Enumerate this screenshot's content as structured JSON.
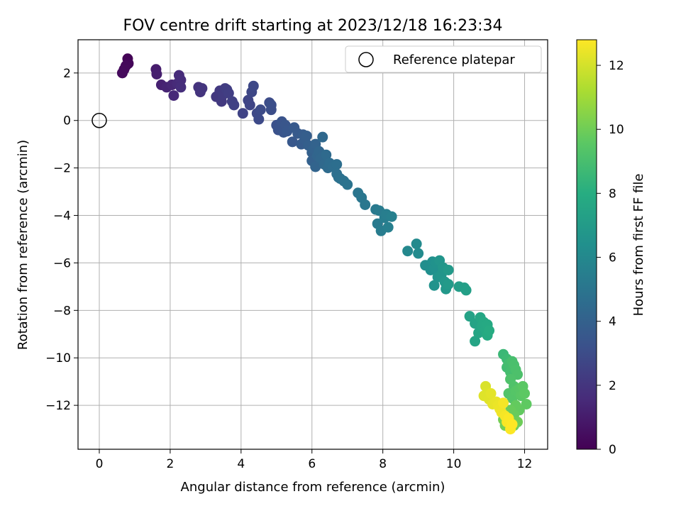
{
  "chart_data": {
    "type": "scatter",
    "title": "FOV centre drift starting at 2023/12/18 16:23:34",
    "xlabel": "Angular distance from reference (arcmin)",
    "ylabel": "Rotation from reference (arcmin)",
    "colorbar_label": "Hours from first FF file",
    "xlim": [
      -0.6,
      12.65
    ],
    "ylim": [
      -13.85,
      3.4
    ],
    "x_ticks": [
      0,
      2,
      4,
      6,
      8,
      10,
      12
    ],
    "y_ticks": [
      -12,
      -10,
      -8,
      -6,
      -4,
      -2,
      0,
      2
    ],
    "colorbar_range": [
      0,
      12.8
    ],
    "colorbar_ticks": [
      0,
      2,
      4,
      6,
      8,
      10,
      12
    ],
    "colormap": "viridis",
    "grid": true,
    "legend_position": "top-right",
    "legend": [
      {
        "label": "Reference platepar",
        "marker": "open-circle",
        "x": 0,
        "y": 0
      }
    ],
    "series": [
      {
        "points": [
          [
            0.8,
            2.6,
            0.1
          ],
          [
            0.82,
            2.4,
            0.2
          ],
          [
            0.75,
            2.3,
            0.25
          ],
          [
            0.7,
            2.15,
            0.3
          ],
          [
            0.65,
            2.0,
            0.35
          ],
          [
            1.6,
            2.15,
            1.0
          ],
          [
            1.62,
            1.95,
            1.1
          ],
          [
            1.75,
            1.5,
            1.2
          ],
          [
            1.9,
            1.4,
            1.3
          ],
          [
            2.05,
            1.5,
            1.4
          ],
          [
            2.1,
            1.05,
            1.5
          ],
          [
            2.2,
            1.55,
            1.55
          ],
          [
            2.25,
            1.9,
            1.6
          ],
          [
            2.3,
            1.7,
            1.65
          ],
          [
            2.3,
            1.4,
            1.7
          ],
          [
            2.8,
            1.4,
            1.9
          ],
          [
            2.85,
            1.2,
            1.95
          ],
          [
            2.9,
            1.35,
            2.0
          ],
          [
            3.3,
            1.0,
            2.1
          ],
          [
            3.4,
            1.25,
            2.15
          ],
          [
            3.45,
            0.8,
            2.2
          ],
          [
            3.5,
            1.1,
            2.25
          ],
          [
            3.55,
            1.35,
            2.3
          ],
          [
            3.6,
            1.3,
            2.35
          ],
          [
            3.65,
            1.15,
            2.4
          ],
          [
            3.75,
            0.8,
            2.45
          ],
          [
            3.8,
            0.65,
            2.5
          ],
          [
            4.05,
            0.3,
            2.6
          ],
          [
            4.2,
            0.85,
            2.65
          ],
          [
            4.25,
            0.65,
            2.7
          ],
          [
            4.3,
            1.2,
            2.75
          ],
          [
            4.35,
            1.45,
            2.8
          ],
          [
            4.45,
            0.3,
            2.85
          ],
          [
            4.5,
            0.05,
            2.9
          ],
          [
            4.55,
            0.45,
            2.95
          ],
          [
            4.8,
            0.75,
            3.0
          ],
          [
            4.85,
            0.45,
            3.05
          ],
          [
            4.85,
            0.65,
            3.1
          ],
          [
            5.0,
            -0.2,
            3.2
          ],
          [
            5.05,
            -0.4,
            3.25
          ],
          [
            5.1,
            -0.3,
            3.3
          ],
          [
            5.15,
            -0.05,
            3.35
          ],
          [
            5.2,
            -0.5,
            3.4
          ],
          [
            5.25,
            -0.2,
            3.45
          ],
          [
            5.3,
            -0.45,
            3.5
          ],
          [
            5.45,
            -0.9,
            3.55
          ],
          [
            5.5,
            -0.3,
            3.6
          ],
          [
            5.6,
            -0.55,
            3.65
          ],
          [
            5.7,
            -1.0,
            3.7
          ],
          [
            5.75,
            -0.6,
            3.75
          ],
          [
            5.8,
            -0.8,
            3.8
          ],
          [
            5.85,
            -0.65,
            3.85
          ],
          [
            5.9,
            -1.05,
            3.9
          ],
          [
            6.0,
            -1.35,
            3.95
          ],
          [
            6.0,
            -1.7,
            4.0
          ],
          [
            6.05,
            -1.2,
            4.05
          ],
          [
            6.1,
            -1.0,
            4.1
          ],
          [
            6.1,
            -1.95,
            4.15
          ],
          [
            6.15,
            -1.5,
            4.2
          ],
          [
            6.2,
            -1.3,
            4.25
          ],
          [
            6.25,
            -1.6,
            4.3
          ],
          [
            6.3,
            -0.7,
            4.35
          ],
          [
            6.35,
            -1.85,
            4.4
          ],
          [
            6.4,
            -1.45,
            4.45
          ],
          [
            6.45,
            -2.0,
            4.5
          ],
          [
            6.5,
            -1.8,
            4.55
          ],
          [
            6.6,
            -1.95,
            4.6
          ],
          [
            6.7,
            -1.85,
            4.65
          ],
          [
            6.7,
            -2.25,
            4.7
          ],
          [
            6.75,
            -2.4,
            4.75
          ],
          [
            6.8,
            -2.45,
            4.8
          ],
          [
            6.9,
            -2.55,
            4.85
          ],
          [
            7.0,
            -2.7,
            4.9
          ],
          [
            7.3,
            -3.05,
            5.0
          ],
          [
            7.4,
            -3.25,
            5.05
          ],
          [
            7.5,
            -3.55,
            5.1
          ],
          [
            7.8,
            -3.75,
            5.2
          ],
          [
            7.85,
            -4.35,
            5.25
          ],
          [
            7.9,
            -3.8,
            5.3
          ],
          [
            7.95,
            -4.65,
            5.35
          ],
          [
            8.05,
            -4.1,
            5.4
          ],
          [
            8.1,
            -3.95,
            5.45
          ],
          [
            8.15,
            -4.5,
            5.5
          ],
          [
            8.25,
            -4.05,
            5.55
          ],
          [
            8.7,
            -5.5,
            6.0
          ],
          [
            8.95,
            -5.2,
            6.1
          ],
          [
            9.0,
            -5.6,
            6.15
          ],
          [
            9.2,
            -6.1,
            6.3
          ],
          [
            9.35,
            -6.3,
            6.35
          ],
          [
            9.4,
            -5.95,
            6.4
          ],
          [
            9.45,
            -6.2,
            6.45
          ],
          [
            9.5,
            -6.0,
            6.5
          ],
          [
            9.45,
            -6.95,
            6.55
          ],
          [
            9.55,
            -6.6,
            6.6
          ],
          [
            9.6,
            -5.9,
            6.65
          ],
          [
            9.65,
            -6.5,
            6.7
          ],
          [
            9.7,
            -6.2,
            6.75
          ],
          [
            9.75,
            -6.8,
            6.8
          ],
          [
            9.78,
            -7.1,
            6.85
          ],
          [
            9.85,
            -6.3,
            6.9
          ],
          [
            9.85,
            -6.9,
            6.95
          ],
          [
            10.15,
            -7.0,
            7.1
          ],
          [
            10.3,
            -7.05,
            7.15
          ],
          [
            10.35,
            -7.15,
            7.2
          ],
          [
            10.45,
            -8.25,
            7.4
          ],
          [
            10.6,
            -8.55,
            7.45
          ],
          [
            10.6,
            -9.3,
            7.5
          ],
          [
            10.7,
            -8.95,
            7.55
          ],
          [
            10.75,
            -8.3,
            7.6
          ],
          [
            10.8,
            -8.65,
            7.65
          ],
          [
            10.85,
            -8.5,
            7.7
          ],
          [
            10.9,
            -8.8,
            7.75
          ],
          [
            10.95,
            -8.6,
            7.8
          ],
          [
            10.95,
            -9.05,
            7.85
          ],
          [
            11.0,
            -8.85,
            7.9
          ],
          [
            11.4,
            -9.85,
            8.6
          ],
          [
            11.5,
            -10.05,
            8.7
          ],
          [
            11.5,
            -10.4,
            8.8
          ],
          [
            11.55,
            -10.25,
            8.9
          ],
          [
            11.6,
            -10.6,
            8.95
          ],
          [
            11.65,
            -10.15,
            9.0
          ],
          [
            11.7,
            -10.3,
            9.05
          ],
          [
            11.75,
            -10.5,
            9.1
          ],
          [
            11.8,
            -10.7,
            9.15
          ],
          [
            11.6,
            -10.9,
            9.2
          ],
          [
            11.7,
            -11.2,
            9.25
          ],
          [
            11.55,
            -11.5,
            9.3
          ],
          [
            11.65,
            -11.7,
            9.35
          ],
          [
            11.75,
            -11.4,
            9.4
          ],
          [
            11.85,
            -11.3,
            9.45
          ],
          [
            11.9,
            -11.6,
            9.5
          ],
          [
            11.95,
            -11.2,
            9.55
          ],
          [
            12.0,
            -11.5,
            9.6
          ],
          [
            12.05,
            -11.95,
            9.65
          ],
          [
            11.85,
            -12.2,
            9.7
          ],
          [
            11.75,
            -12.0,
            9.75
          ],
          [
            11.7,
            -12.4,
            9.8
          ],
          [
            11.6,
            -12.2,
            9.85
          ],
          [
            11.5,
            -12.5,
            9.9
          ],
          [
            11.8,
            -12.7,
            9.95
          ],
          [
            11.7,
            -12.85,
            10.0
          ],
          [
            11.45,
            -12.85,
            10.05
          ],
          [
            11.4,
            -12.6,
            10.1
          ],
          [
            10.9,
            -11.2,
            12.1
          ],
          [
            10.95,
            -11.45,
            12.15
          ],
          [
            10.85,
            -11.6,
            12.2
          ],
          [
            11.0,
            -11.75,
            12.25
          ],
          [
            11.05,
            -11.5,
            12.3
          ],
          [
            11.1,
            -11.95,
            12.35
          ],
          [
            11.2,
            -11.85,
            12.4
          ],
          [
            11.25,
            -12.0,
            12.45
          ],
          [
            11.3,
            -12.15,
            12.5
          ],
          [
            11.35,
            -12.3,
            12.55
          ],
          [
            11.4,
            -11.9,
            12.6
          ],
          [
            11.45,
            -12.45,
            12.65
          ],
          [
            11.5,
            -12.7,
            12.7
          ],
          [
            11.55,
            -12.55,
            12.75
          ],
          [
            11.6,
            -13.0,
            12.78
          ],
          [
            11.65,
            -12.8,
            12.8
          ]
        ]
      }
    ]
  }
}
